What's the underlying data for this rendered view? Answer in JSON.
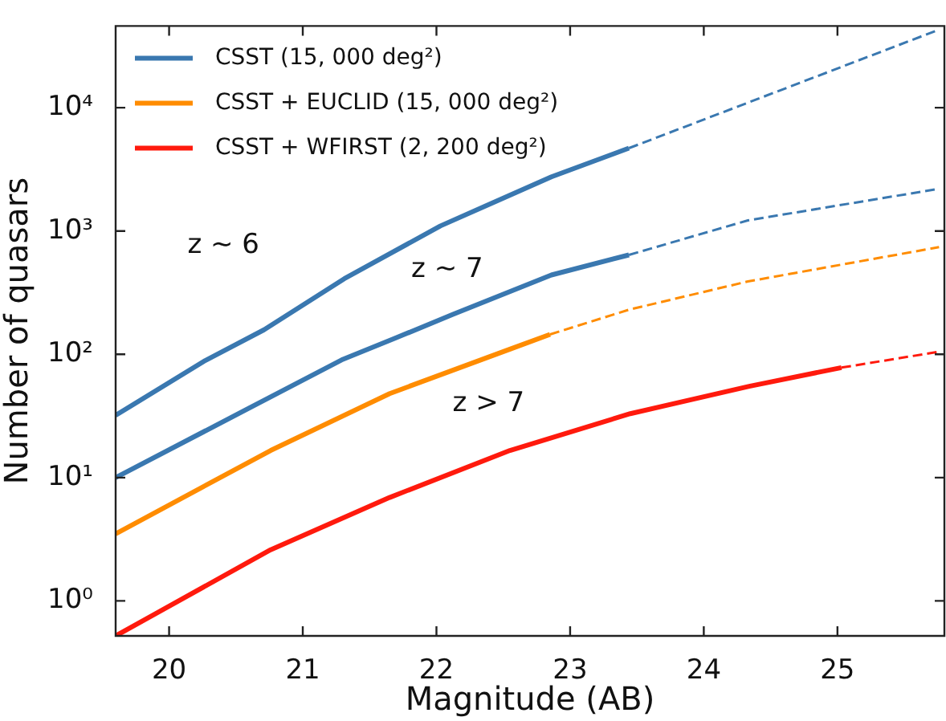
{
  "chart_data": {
    "type": "line",
    "xlabel": "Magnitude (AB)",
    "ylabel": "Number of quasars",
    "log": "y",
    "xlim": [
      19.6,
      25.8
    ],
    "ylim": [
      0.52,
      46000
    ],
    "xticks": [
      20,
      21,
      22,
      23,
      24,
      25
    ],
    "yticks": [
      {
        "value": 1,
        "label": "10⁰"
      },
      {
        "value": 10,
        "label": "10¹"
      },
      {
        "value": 100,
        "label": "10²"
      },
      {
        "value": 1000,
        "label": "10³"
      },
      {
        "value": 10000,
        "label": "10⁴"
      }
    ],
    "grid": false,
    "legend": "top left",
    "marker": "none",
    "series": [
      {
        "name": "CSST (15, 000 deg²)",
        "color": "#3a78b0",
        "line_style": "solid",
        "x": [
          19.6,
          20.27,
          20.71,
          21.31,
          22.03,
          22.86,
          23.44
        ],
        "values": [
          32,
          89,
          158,
          410,
          1100,
          2750,
          4700
        ]
      },
      {
        "color": "#3a78b0",
        "line_style": "dashed",
        "x": [
          23.44,
          25.76
        ],
        "values": [
          4700,
          43000
        ]
      },
      {
        "color": "#3a78b0",
        "line_style": "solid",
        "x": [
          19.6,
          21.29,
          21.69,
          22.12,
          22.86,
          23.44
        ],
        "values": [
          10,
          90,
          135,
          210,
          440,
          640
        ]
      },
      {
        "color": "#3a78b0",
        "line_style": "dashed",
        "x": [
          23.44,
          24.33,
          25.76
        ],
        "values": [
          640,
          1220,
          2200
        ]
      },
      {
        "name": "CSST + EUCLID (15, 000 deg²)",
        "color": "#ff8c00",
        "line_style": "solid",
        "x": [
          19.6,
          20.76,
          21.65,
          22.55,
          22.85
        ],
        "values": [
          3.5,
          16.6,
          48,
          110,
          145
        ]
      },
      {
        "color": "#ff8c00",
        "line_style": "dashed",
        "x": [
          22.85,
          23.44,
          24.33,
          25.76
        ],
        "values": [
          145,
          230,
          390,
          740
        ]
      },
      {
        "name": "CSST + WFIRST (2, 200 deg²)",
        "color": "#ff1a0d",
        "line_style": "solid",
        "x": [
          19.6,
          20.76,
          21.65,
          22.55,
          23.45,
          24.34,
          25.03
        ],
        "values": [
          0.52,
          2.6,
          6.9,
          16.6,
          33,
          55,
          78
        ]
      },
      {
        "color": "#ff1a0d",
        "line_style": "dashed",
        "x": [
          25.03,
          25.76
        ],
        "values": [
          78,
          105
        ]
      }
    ],
    "annotations": [
      "z ~ 6",
      "z ~ 7",
      "z > 7"
    ]
  }
}
